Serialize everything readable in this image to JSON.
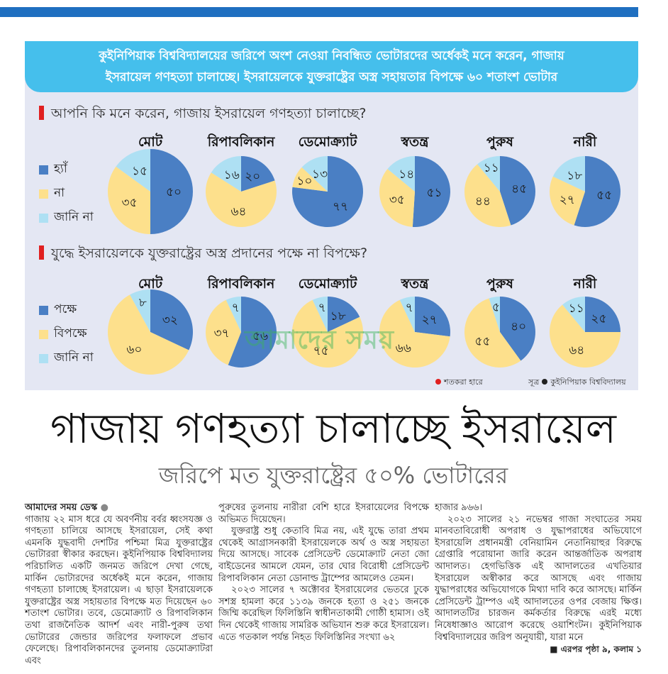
{
  "banner": {
    "line1": "কুইনিপিয়াক বিশ্ববিদ্যালয়ের জরিপে অংশ নেওয়া নিবন্ধিত ভোটারদের অর্ধেকই মনে করেন, গাজায়",
    "line2": "ইসরায়েল গণহত্যা চালাচ্ছে। ইসরায়েলকে যুক্তরাষ্ট্রের অস্ত্র সহায়তার বিপক্ষে ৬০ শতাংশ ভোটার"
  },
  "colors": {
    "blue": "#4a7fc4",
    "yellow": "#fde08c",
    "light_blue": "#aee0f3",
    "accent_red": "#e02020"
  },
  "chart_data": [
    {
      "type": "pie",
      "title": "আপনি কি মনে করেন, গাজায় ইসরায়েল গণহত্যা চালাচ্ছে?",
      "legend": [
        "হ্যাঁ",
        "না",
        "জানি না"
      ],
      "groups": [
        {
          "label": "মোট",
          "values": [
            50,
            35,
            15
          ],
          "labels": [
            "৫০",
            "৩৫",
            "১৫"
          ]
        },
        {
          "label": "রিপাবলিকান",
          "values": [
            20,
            64,
            16
          ],
          "labels": [
            "২০",
            "৬৪",
            "১৬"
          ]
        },
        {
          "label": "ডেমোক্র্যাট",
          "values": [
            77,
            10,
            13
          ],
          "labels": [
            "৭৭",
            "১০",
            "১৩"
          ]
        },
        {
          "label": "স্বতন্ত্র",
          "values": [
            51,
            35,
            14
          ],
          "labels": [
            "৫১",
            "৩৫",
            "১৪"
          ]
        },
        {
          "label": "পুরুষ",
          "values": [
            45,
            44,
            11
          ],
          "labels": [
            "৪৫",
            "৪৪",
            "১১"
          ]
        },
        {
          "label": "নারী",
          "values": [
            55,
            27,
            18
          ],
          "labels": [
            "৫৫",
            "২৭",
            "১৮"
          ]
        }
      ]
    },
    {
      "type": "pie",
      "title": "যুদ্ধে ইসরায়েলকে যুক্তরাষ্ট্রের অস্ত্র প্রদানের পক্ষে না বিপক্ষে?",
      "legend": [
        "পক্ষে",
        "বিপক্ষে",
        "জানি না"
      ],
      "groups": [
        {
          "label": "মোট",
          "values": [
            32,
            60,
            8
          ],
          "labels": [
            "৩২",
            "৬০",
            "৮"
          ]
        },
        {
          "label": "রিপাবলিকান",
          "values": [
            56,
            37,
            7
          ],
          "labels": [
            "৫৬",
            "৩৭",
            "৭"
          ]
        },
        {
          "label": "ডেমোক্র্যাট",
          "values": [
            18,
            75,
            7
          ],
          "labels": [
            "১৮",
            "৭৫",
            "৭"
          ]
        },
        {
          "label": "স্বতন্ত্র",
          "values": [
            27,
            66,
            7
          ],
          "labels": [
            "২৭",
            "৬৬",
            "৭"
          ]
        },
        {
          "label": "পুরুষ",
          "values": [
            40,
            55,
            5
          ],
          "labels": [
            "৪০",
            "৫৫",
            "৫"
          ]
        },
        {
          "label": "নারী",
          "values": [
            25,
            64,
            11
          ],
          "labels": [
            "২৫",
            "৬৪",
            "১১"
          ]
        }
      ]
    }
  ],
  "notes": {
    "unit": "শতকরা হারে",
    "source_label": "সূত্র",
    "source": "কুইনিপিয়াক বিশ্ববিদ্যালয়"
  },
  "watermark": "আমাদের সময়",
  "headline": "গাজায় গণহত্যা চালাচ্ছে ইসরায়েল",
  "subheadline": "জরিপে মত যুক্তরাষ্ট্রের ৫০% ভোটারের",
  "article": {
    "byline": "আমাদের সময় ডেস্ক",
    "col1_p1": "গাজায় ২২ মাস ধরে যে অবর্ণনীয় বর্বর ধ্বংসযজ্ঞ ও গণহত্যা চালিয়ে আসছে ইসরায়েল, সেই কথা এমনকি যুদ্ধবাদী দেশটির পশ্চিমা মিত্র যুক্তরাষ্ট্রের ভোটাররা স্বীকার করছেন। কুইনিপিয়াক বিশ্ববিদ্যালয় পরিচালিত একটি জনমত জরিপে দেখা গেছে, মার্কিন ভোটারদের অর্ধেকই মনে করেন, গাজায় গণহত্যা চালাচ্ছে ইসরায়েল। এ ছাড়া ইসরায়েলকে যুক্তরাষ্ট্রের অস্ত্র সহায়তার বিপক্ষে মত দিয়েছেন ৬০ শতাংশ ভোটার। তবে, ডেমোক্র্যাট ও রিপাবলিকান তথা রাজনৈতিক আদর্শ এবং নারী-পুরুষ তথা ভোটারের জেন্ডার জরিপের ফলাফলে প্রভাব ফেলেছে। রিপাবলিকানদের তুলনায় ডেমোক্র্যাটরা এবং",
    "col2_p1": "পুরুষের তুলনায় নারীরা বেশি হারে ইসরায়েলের বিপক্ষে অভিমত দিয়েছেন।",
    "col2_p2": "যুক্তরাষ্ট্র শুধু কেতাবি মিত্র নয়, এই যুদ্ধে তারা প্রথম থেকেই আগ্রাসনকারী ইসরায়েলকে অর্থ ও অস্ত্র সহায়তা দিয়ে আসছে। সাবেক প্রেসিডেন্ট ডেমোক্র্যাট নেতা জো বাইডেনের আমলে যেমন, তার ঘোর বিরোধী প্রেসিডেন্ট রিপাবলিকান নেতা ডোনাল্ড ট্রাম্পের আমলেও তেমন।",
    "col2_p3": "২০২৩ সালের ৭ অক্টোবর ইসরায়েলের ভেতরে ঢুকে সশস্ত্র হামলা করে ১১৩৯ জনকে হত্যা ও ২৫১ জনকে জিম্মি করেছিল ফিলিস্তিনি স্বাধীনতাকামী গোষ্ঠী হামাস। ওই দিন থেকেই গাজায় সামরিক অভিযান শুরু করে ইসরায়েল। এতে গতকাল পর্যন্ত নিহত ফিলিস্তিনির সংখ্যা ৬২",
    "col3_p1": "হাজার ৯৬৬।",
    "col3_p2": "২০২৩ সালের ২১ নভেম্বর গাজা সংঘাতের সময় মানবতাবিরোধী অপরাধ ও যুদ্ধাপরাধের অভিযোগে ইসরায়েলি প্রধানমন্ত্রী বেনিয়ামিন নেতানিয়াহুর বিরুদ্ধে গ্রেপ্তারি পরোয়ানা জারি করেন আন্তর্জাতিক অপরাধ আদালত। হেগভিত্তিক এই আদালতের এখতিয়ার ইসরায়েল অস্বীকার করে আসছে এবং গাজায় যুদ্ধাপরাধের অভিযোগকে মিথ্যা দাবি করে আসছে। মার্কিন প্রেসিডেন্ট ট্রাম্পও এই আদালতের ওপর বেজায় ক্ষিপ্ত। আদালতটির চারজন কর্মকর্তার বিরুদ্ধে এরই মধ্যে নিষেধাজ্ঞাও আরোপ করেছে ওয়াশিংটন। কুইনিপিয়াক বিশ্ববিদ্যালয়ের জরিপ অনুযায়ী, যারা মনে",
    "continued": "■ এরপর পৃষ্ঠা ৯, কলাম ১"
  }
}
